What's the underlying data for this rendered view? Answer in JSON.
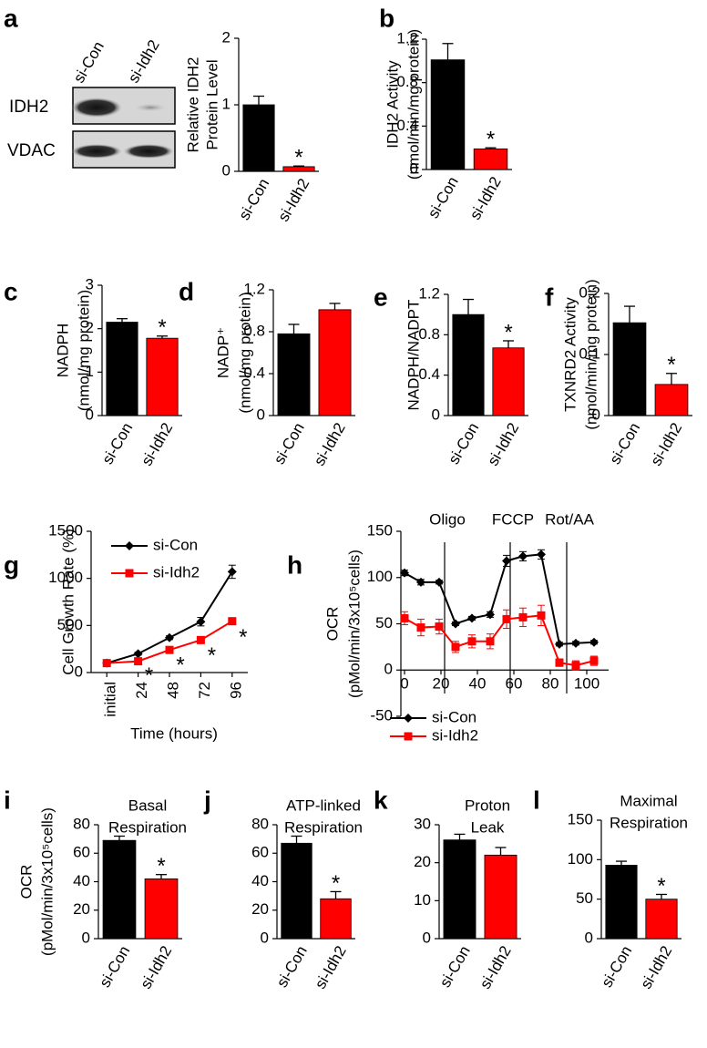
{
  "blot": {
    "lanes": [
      "si-Con",
      "si-Idh2"
    ],
    "rows": [
      "IDH2",
      "VDAC"
    ]
  },
  "chart_data": [
    {
      "type": "bar",
      "label": "a",
      "ylabel": [
        "Relative IDH2",
        "Protein Level"
      ],
      "categories": [
        "si-Con",
        "si-Idh2"
      ],
      "values": [
        1.0,
        0.07
      ],
      "errors": [
        0.13,
        0.01
      ],
      "significance": [
        null,
        "*"
      ],
      "colors": [
        "#000000",
        "#ff0000"
      ],
      "ylim": [
        0,
        2
      ],
      "yticks": [
        0,
        1,
        2
      ]
    },
    {
      "type": "bar",
      "label": "b",
      "ylabel": [
        "IDH2 Activity",
        "(nmol/min/mg protein)"
      ],
      "categories": [
        "si-Con",
        "si-Idh2"
      ],
      "values": [
        1.01,
        0.19
      ],
      "errors": [
        0.15,
        0.01
      ],
      "significance": [
        null,
        "*"
      ],
      "colors": [
        "#000000",
        "#ff0000"
      ],
      "ylim": [
        0,
        1.2
      ],
      "yticks": [
        0,
        0.4,
        0.8,
        1.2
      ]
    },
    {
      "type": "bar",
      "label": "c",
      "ylabel": [
        "NADPH",
        "(nmol/mg protein)"
      ],
      "categories": [
        "si-Con",
        "si-Idh2"
      ],
      "values": [
        2.15,
        1.78
      ],
      "errors": [
        0.08,
        0.05
      ],
      "significance": [
        null,
        "*"
      ],
      "colors": [
        "#000000",
        "#ff0000"
      ],
      "ylim": [
        0,
        3
      ],
      "yticks": [
        0,
        1,
        2,
        3
      ]
    },
    {
      "type": "bar",
      "label": "d",
      "ylabel": [
        "NADP⁺",
        "(nmol/mg protein)"
      ],
      "categories": [
        "si-Con",
        "si-Idh2"
      ],
      "values": [
        0.78,
        1.01
      ],
      "errors": [
        0.09,
        0.06
      ],
      "significance": [
        null,
        null
      ],
      "colors": [
        "#000000",
        "#ff0000"
      ],
      "ylim": [
        0,
        1.2
      ],
      "yticks": [
        0,
        0.4,
        0.8,
        1.2
      ]
    },
    {
      "type": "bar",
      "label": "e",
      "ylabel": [
        "NADPH/NADPT"
      ],
      "categories": [
        "si-Con",
        "si-Idh2"
      ],
      "values": [
        1.0,
        0.67
      ],
      "errors": [
        0.15,
        0.07
      ],
      "significance": [
        null,
        "*"
      ],
      "colors": [
        "#000000",
        "#ff0000"
      ],
      "ylim": [
        0,
        1.2
      ],
      "yticks": [
        0,
        0.4,
        0.8,
        1.2
      ]
    },
    {
      "type": "bar",
      "label": "f",
      "ylabel": [
        "TXNRD2 Activity",
        "(nmol/min/mg protein)"
      ],
      "categories": [
        "si-Con",
        "si-Idh2"
      ],
      "values": [
        0.152,
        0.051
      ],
      "errors": [
        0.027,
        0.018
      ],
      "significance": [
        null,
        "*"
      ],
      "colors": [
        "#000000",
        "#ff0000"
      ],
      "ylim": [
        0,
        0.2
      ],
      "yticks": [
        0,
        0.1,
        0.2
      ]
    },
    {
      "type": "line",
      "label": "g",
      "ylabel": [
        "Cell Growth Rate (%)"
      ],
      "xlabel": "Time (hours)",
      "categories": [
        "initial",
        "24",
        "48",
        "72",
        "96"
      ],
      "legend": "upper left",
      "series": [
        {
          "name": "si-Con",
          "color": "#000000",
          "marker": "diamond",
          "values": [
            100,
            200,
            370,
            540,
            1070
          ],
          "errors": [
            10,
            15,
            20,
            45,
            70
          ],
          "significance": [
            null,
            null,
            null,
            null,
            null
          ]
        },
        {
          "name": "si-Idh2",
          "color": "#ff0000",
          "marker": "square",
          "values": [
            100,
            120,
            240,
            345,
            545
          ],
          "errors": [
            10,
            10,
            20,
            20,
            30
          ],
          "significance": [
            null,
            "*",
            "*",
            "*",
            "*"
          ]
        }
      ],
      "ylim": [
        0,
        1500
      ],
      "yticks": [
        0,
        500,
        1000,
        1500
      ]
    },
    {
      "type": "line",
      "label": "h",
      "ylabel": [
        "OCR",
        "(pMol/min/3x10⁵cells)"
      ],
      "legend": "lower left",
      "x": [
        0,
        9,
        19,
        28,
        37,
        47,
        56,
        65,
        75,
        85,
        94,
        104
      ],
      "series": [
        {
          "name": "si-Con",
          "color": "#000000",
          "marker": "diamond",
          "values": [
            105,
            95,
            95,
            50,
            56,
            60,
            118,
            123,
            125,
            28,
            29,
            30
          ],
          "errors": [
            3,
            3,
            2,
            2,
            2,
            3,
            6,
            5,
            5,
            2,
            2,
            2
          ]
        },
        {
          "name": "si-Idh2",
          "color": "#ff0000",
          "marker": "square",
          "values": [
            56,
            46,
            47,
            25,
            31,
            31,
            55,
            57,
            59,
            8,
            5,
            10
          ],
          "errors": [
            7,
            9,
            8,
            6,
            7,
            8,
            10,
            10,
            11,
            4,
            5,
            5
          ]
        }
      ],
      "events": [
        {
          "label": "Oligo",
          "x": 22
        },
        {
          "label": "FCCP",
          "x": 58
        },
        {
          "label": "Rot/AA",
          "x": 89
        }
      ],
      "xlim": [
        -2,
        112
      ],
      "xticks": [
        0,
        20,
        40,
        60,
        80,
        100
      ],
      "ylim": [
        -50,
        150
      ],
      "yticks": [
        -50,
        0,
        50,
        100,
        150
      ]
    },
    {
      "type": "bar",
      "label": "i",
      "title": [
        "Basal",
        "Respiration"
      ],
      "ylabel": [
        "OCR",
        "(pMol/min/3x10⁵cells)"
      ],
      "categories": [
        "si-Con",
        "si-Idh2"
      ],
      "values": [
        69,
        42
      ],
      "errors": [
        3,
        3
      ],
      "significance": [
        null,
        "*"
      ],
      "colors": [
        "#000000",
        "#ff0000"
      ],
      "ylim": [
        0,
        80
      ],
      "yticks": [
        0,
        20,
        40,
        60,
        80
      ]
    },
    {
      "type": "bar",
      "label": "j",
      "title": [
        "ATP-linked",
        "Respiration"
      ],
      "categories": [
        "si-Con",
        "si-Idh2"
      ],
      "values": [
        67,
        28
      ],
      "errors": [
        5,
        5
      ],
      "significance": [
        null,
        "*"
      ],
      "colors": [
        "#000000",
        "#ff0000"
      ],
      "ylim": [
        0,
        80
      ],
      "yticks": [
        0,
        20,
        40,
        60,
        80
      ]
    },
    {
      "type": "bar",
      "label": "k",
      "title": [
        "Proton",
        "Leak"
      ],
      "categories": [
        "si-Con",
        "si-Idh2"
      ],
      "values": [
        26,
        22
      ],
      "errors": [
        1.5,
        2
      ],
      "significance": [
        null,
        null
      ],
      "colors": [
        "#000000",
        "#ff0000"
      ],
      "ylim": [
        0,
        30
      ],
      "yticks": [
        0,
        10,
        20,
        30
      ]
    },
    {
      "type": "bar",
      "label": "l",
      "title": [
        "Maximal",
        "Respiration"
      ],
      "categories": [
        "si-Con",
        "si-Idh2"
      ],
      "values": [
        93,
        50
      ],
      "errors": [
        5,
        6
      ],
      "significance": [
        null,
        "*"
      ],
      "colors": [
        "#000000",
        "#ff0000"
      ],
      "ylim": [
        0,
        150
      ],
      "yticks": [
        0,
        50,
        100,
        150
      ]
    }
  ]
}
